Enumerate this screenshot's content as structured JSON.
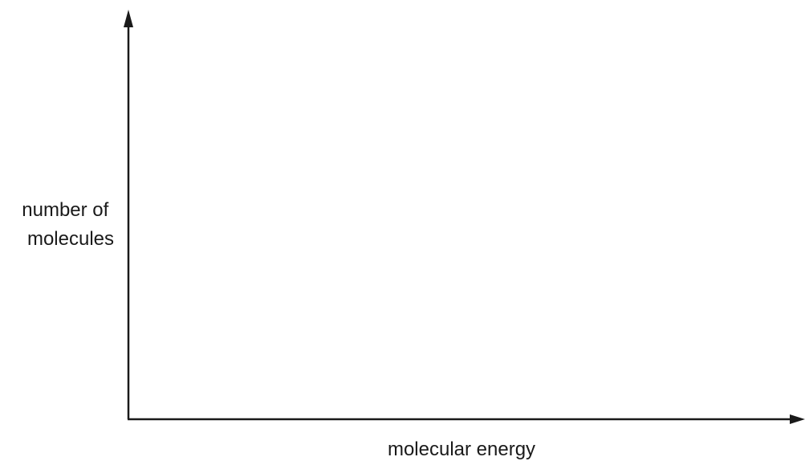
{
  "chart_data": {
    "type": "line",
    "title": "",
    "xlabel": "molecular energy",
    "ylabel_lines": [
      "number of",
      "molecules"
    ],
    "series": [],
    "grid": false,
    "legend": "none"
  },
  "colors": {
    "axis": "#1a1a1a",
    "background": "#ffffff"
  }
}
